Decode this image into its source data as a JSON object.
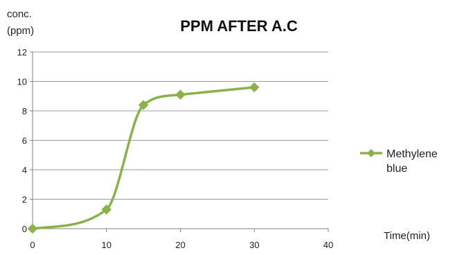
{
  "chart_data": {
    "type": "line",
    "title": "PPM AFTER A.C",
    "ylabel_lines": [
      "conc.",
      "(ppm)"
    ],
    "xlabel": "Time(min)",
    "xlim": [
      0,
      40
    ],
    "ylim": [
      0,
      12
    ],
    "x_ticks": [
      "0",
      "10",
      "20",
      "30",
      "40"
    ],
    "y_ticks": [
      "0",
      "2",
      "4",
      "6",
      "8",
      "10",
      "12"
    ],
    "grid": true,
    "legend_position": "right",
    "series": [
      {
        "name_lines": [
          "Methylene",
          "blue"
        ],
        "color": "#8bb14a",
        "marker": "diamond",
        "smooth": true,
        "points": [
          {
            "x": 0,
            "y": 0
          },
          {
            "x": 10,
            "y": 1.3
          },
          {
            "x": 15,
            "y": 8.4
          },
          {
            "x": 20,
            "y": 9.1
          },
          {
            "x": 30,
            "y": 9.6
          }
        ]
      }
    ]
  }
}
